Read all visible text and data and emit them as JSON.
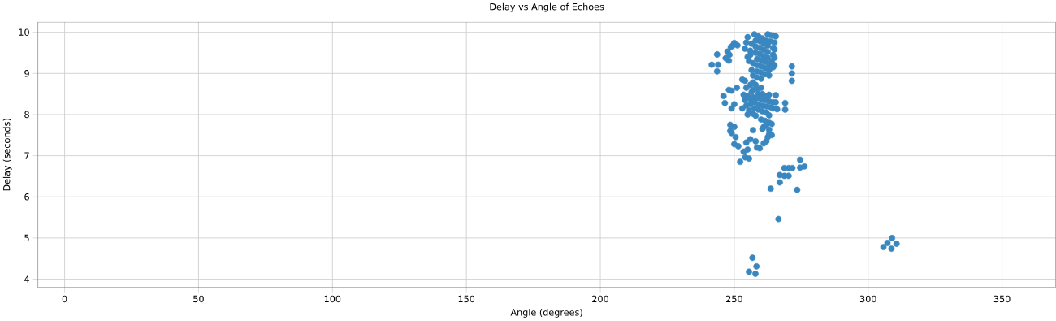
{
  "chart_data": {
    "type": "scatter",
    "title": "Delay vs Angle of Echoes",
    "xlabel": "Angle (degrees)",
    "ylabel": "Delay (seconds)",
    "xlim": [
      -10,
      370
    ],
    "ylim": [
      3.8,
      10.25
    ],
    "xticks": [
      0,
      50,
      100,
      150,
      200,
      250,
      300,
      350
    ],
    "yticks": [
      4,
      5,
      6,
      7,
      8,
      9,
      10
    ],
    "grid": true,
    "marker": "circle",
    "series": [
      {
        "color": "#3a87c0",
        "x": [
          241.6,
          243.6,
          244,
          243.6,
          246.8,
          247.5,
          248.2,
          248,
          248.7,
          250,
          249.5,
          251.2,
          255,
          256.5,
          256,
          256,
          255.5,
          257,
          256.5,
          257,
          257.5,
          258,
          258,
          258,
          258.5,
          258.5,
          258.5,
          258.5,
          259,
          259.5,
          259.5,
          259.5,
          260,
          260,
          260,
          260,
          260.5,
          261,
          261,
          261,
          261.5,
          261.5,
          261.5,
          262,
          262.5,
          262.5,
          262.5,
          263,
          263,
          262.5,
          263.5,
          264.5,
          265.5,
          263.5,
          264.5,
          264.5,
          264,
          264.5,
          263,
          265,
          265,
          265,
          265,
          254,
          254.5,
          255,
          253,
          254,
          254.5,
          256,
          257,
          258,
          258.5,
          257,
          260,
          253.5,
          254,
          254.5,
          253,
          255,
          256,
          256,
          255.5,
          257,
          257.5,
          257.5,
          257,
          258.5,
          259,
          259,
          260,
          260.5,
          260.5,
          261.5,
          262,
          262,
          263,
          263.5,
          263,
          264.5,
          264.5,
          259,
          260.5,
          262,
          263,
          256.5,
          255,
          258,
          271.5,
          271.5,
          271.5,
          269,
          269,
          265.5,
          265.5,
          266,
          248,
          249,
          246,
          246.5,
          249,
          251,
          250,
          248.5,
          248.5,
          250,
          249,
          250.5,
          250,
          251.5,
          253.5,
          254.5,
          255,
          256,
          257,
          258,
          258.5,
          259.5,
          261,
          262,
          263,
          261,
          262,
          263,
          264,
          260,
          261.5,
          263,
          264,
          260.5,
          262.5,
          252.2,
          254.1,
          255.5,
          274.6,
          268.7,
          270.3,
          271.7,
          274.6,
          276.2,
          267,
          268.7,
          270.3,
          267,
          263.6,
          273.5,
          266.5,
          256.8,
          258.3,
          255.5,
          257.9,
          305.7,
          307.2,
          308.9,
          310.6,
          308.7
        ],
        "values": [
          9.21,
          9.46,
          9.21,
          9.05,
          9.37,
          9.53,
          9.45,
          9.31,
          9.64,
          9.74,
          9.68,
          9.68,
          9.88,
          9.72,
          9.55,
          9.45,
          9.3,
          9.25,
          9.08,
          8.95,
          9.95,
          9.8,
          9.65,
          9.5,
          9.35,
          9.2,
          9.05,
          8.9,
          9.9,
          9.78,
          9.62,
          9.47,
          9.32,
          9.17,
          9.02,
          8.87,
          9.85,
          9.72,
          9.57,
          9.42,
          9.28,
          9.13,
          8.98,
          9.8,
          9.67,
          9.52,
          9.38,
          9.23,
          9.08,
          9.95,
          9.93,
          9.92,
          9.9,
          9.78,
          9.62,
          9.45,
          9.3,
          9.15,
          8.95,
          9.75,
          9.58,
          9.38,
          9.2,
          9.6,
          9.75,
          9.4,
          8.85,
          8.82,
          8.65,
          8.72,
          8.6,
          8.72,
          8.62,
          8.78,
          8.65,
          8.48,
          8.35,
          8.22,
          8.15,
          8.45,
          8.38,
          8.25,
          8.1,
          8.42,
          8.3,
          8.15,
          8.02,
          8.4,
          8.25,
          8.12,
          8.38,
          8.22,
          8.08,
          8.35,
          8.2,
          8.05,
          8.32,
          8.18,
          7.98,
          8.3,
          8.15,
          8.5,
          8.5,
          8.45,
          8.48,
          8.55,
          8.0,
          7.97,
          9.17,
          9.0,
          8.82,
          8.28,
          8.12,
          8.47,
          8.3,
          8.13,
          8.6,
          8.58,
          8.45,
          8.28,
          8.15,
          8.65,
          8.25,
          7.75,
          7.6,
          7.7,
          7.55,
          7.45,
          7.28,
          7.23,
          7.1,
          7.32,
          7.15,
          7.4,
          7.62,
          7.35,
          7.2,
          7.18,
          7.3,
          7.35,
          7.52,
          7.7,
          7.75,
          7.8,
          7.77,
          7.88,
          7.85,
          7.63,
          7.5,
          7.65,
          7.45,
          6.85,
          6.96,
          6.93,
          6.9,
          6.7,
          6.7,
          6.7,
          6.71,
          6.74,
          6.53,
          6.51,
          6.51,
          6.35,
          6.2,
          6.17,
          5.46,
          4.52,
          4.31,
          4.18,
          4.13,
          4.78,
          4.88,
          5.0,
          4.86,
          4.74
        ]
      }
    ]
  }
}
